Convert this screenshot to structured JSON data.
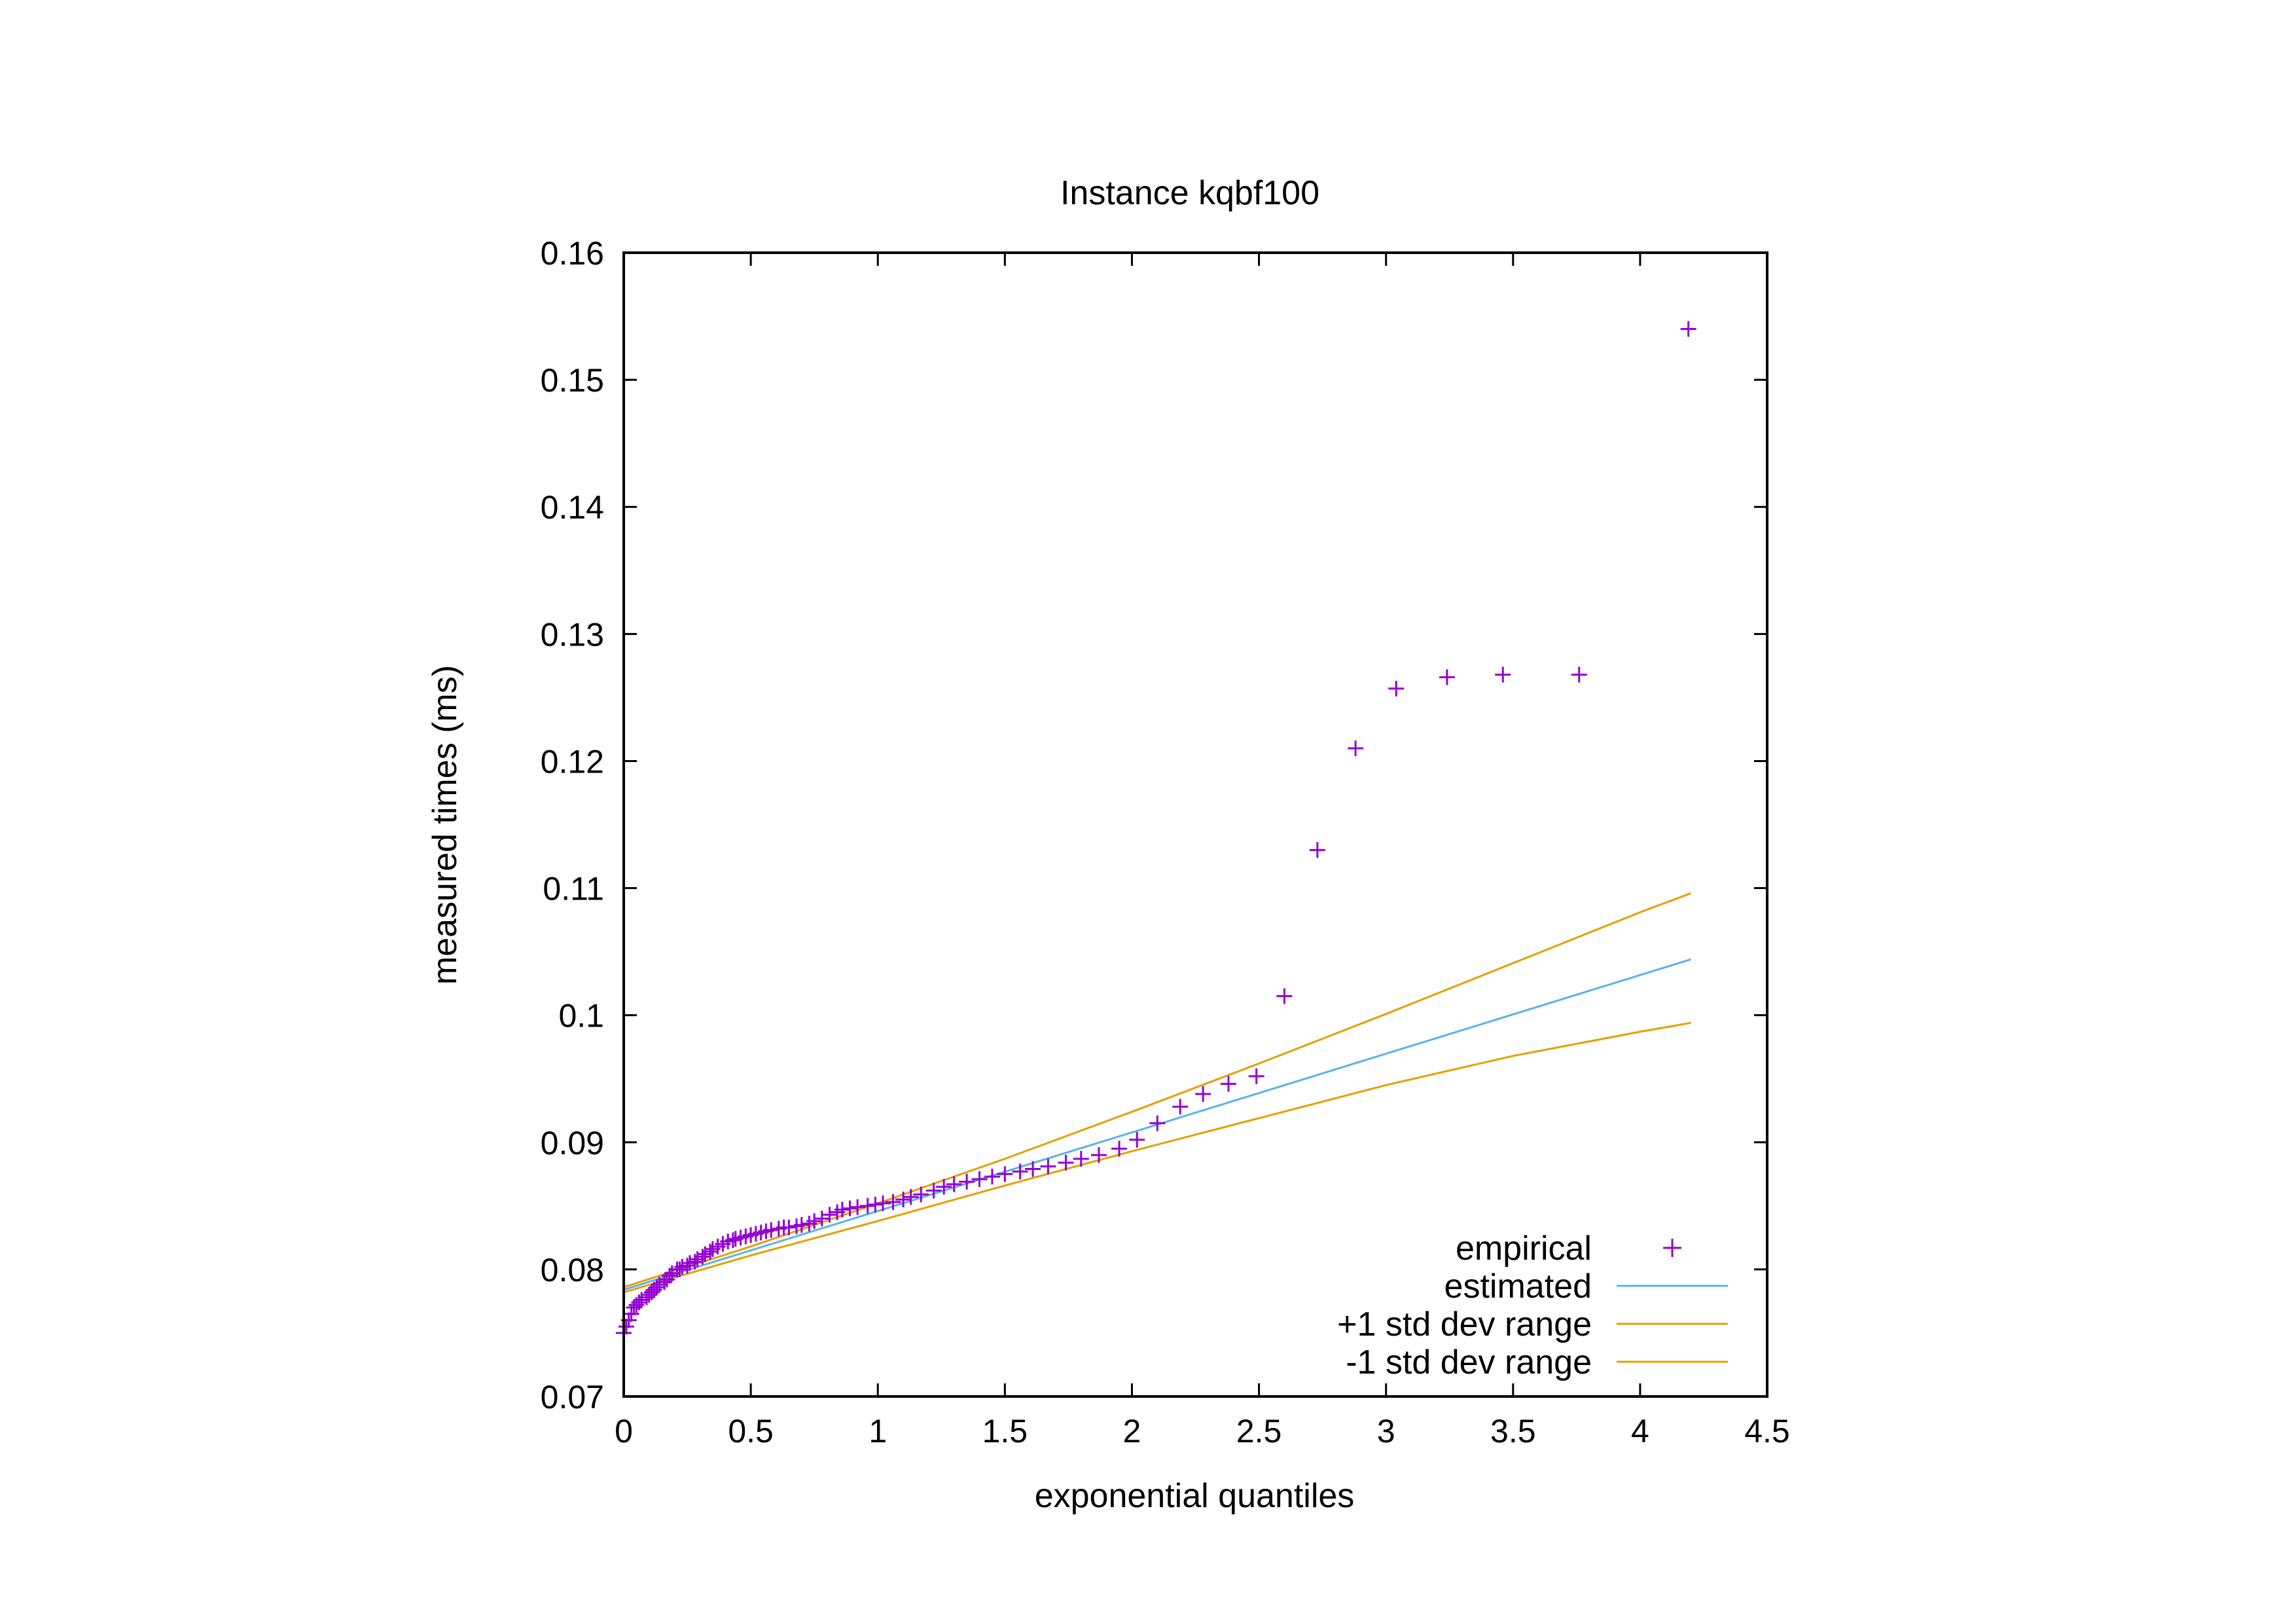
{
  "chart_data": {
    "type": "scatter",
    "title": "Instance kqbf100",
    "xlabel": "exponential quantiles",
    "ylabel": "measured times (ms)",
    "xlim": [
      0,
      4.5
    ],
    "ylim": [
      0.07,
      0.16
    ],
    "xticks": [
      "0",
      "0.5",
      "1",
      "1.5",
      "2",
      "2.5",
      "3",
      "3.5",
      "4",
      "4.5"
    ],
    "yticks": [
      "0.07",
      "0.08",
      "0.09",
      "0.1",
      "0.11",
      "0.12",
      "0.13",
      "0.14",
      "0.15",
      "0.16"
    ],
    "grid": false,
    "legend_position": "bottom-right",
    "series": [
      {
        "name": "empirical",
        "kind": "points",
        "marker": "plus",
        "color": "#9400D3",
        "x": [
          0.0,
          0.01,
          0.02,
          0.03,
          0.04,
          0.05,
          0.06,
          0.07,
          0.09,
          0.1,
          0.11,
          0.12,
          0.13,
          0.14,
          0.16,
          0.17,
          0.18,
          0.19,
          0.21,
          0.22,
          0.23,
          0.25,
          0.26,
          0.28,
          0.29,
          0.31,
          0.32,
          0.34,
          0.35,
          0.37,
          0.39,
          0.41,
          0.43,
          0.44,
          0.46,
          0.48,
          0.5,
          0.52,
          0.54,
          0.56,
          0.58,
          0.61,
          0.63,
          0.65,
          0.68,
          0.7,
          0.73,
          0.75,
          0.78,
          0.81,
          0.84,
          0.86,
          0.89,
          0.92,
          0.96,
          0.99,
          1.02,
          1.06,
          1.1,
          1.13,
          1.17,
          1.22,
          1.26,
          1.3,
          1.35,
          1.4,
          1.45,
          1.5,
          1.56,
          1.61,
          1.67,
          1.74,
          1.8,
          1.87,
          1.95,
          2.02,
          2.1,
          2.19,
          2.28,
          2.38,
          2.49,
          2.6,
          2.73,
          2.88,
          3.04,
          3.24,
          3.46,
          3.76,
          4.19
        ],
        "y": [
          0.075,
          0.0755,
          0.076,
          0.0765,
          0.077,
          0.0772,
          0.0774,
          0.0776,
          0.0778,
          0.078,
          0.0782,
          0.0784,
          0.0786,
          0.0788,
          0.079,
          0.0792,
          0.0795,
          0.0797,
          0.08,
          0.08,
          0.0802,
          0.0803,
          0.0805,
          0.0806,
          0.0808,
          0.081,
          0.0812,
          0.0814,
          0.0816,
          0.0818,
          0.082,
          0.0822,
          0.0823,
          0.0824,
          0.0825,
          0.0826,
          0.0827,
          0.0828,
          0.0829,
          0.083,
          0.0831,
          0.0832,
          0.0833,
          0.0833,
          0.0834,
          0.0835,
          0.0836,
          0.0838,
          0.084,
          0.0843,
          0.0845,
          0.0847,
          0.0848,
          0.0849,
          0.085,
          0.0851,
          0.0852,
          0.0853,
          0.0855,
          0.0857,
          0.0859,
          0.0862,
          0.0865,
          0.0867,
          0.0869,
          0.0871,
          0.0873,
          0.0875,
          0.0877,
          0.0879,
          0.0881,
          0.0884,
          0.0887,
          0.089,
          0.0895,
          0.0902,
          0.0915,
          0.0928,
          0.0938,
          0.0946,
          0.0952,
          0.1015,
          0.113,
          0.121,
          0.1257,
          0.1266,
          0.1268,
          0.1268,
          0.154
        ]
      },
      {
        "name": "estimated",
        "kind": "line",
        "color": "#56B4E9",
        "x": [
          0,
          4.2
        ],
        "y": [
          0.0784,
          0.1044
        ]
      },
      {
        "name": "+1 std dev range",
        "kind": "line",
        "color": "#E69F00",
        "x": [
          0,
          0.5,
          1,
          1.5,
          2,
          2.5,
          3,
          3.5,
          4,
          4.2
        ],
        "y": [
          0.0786,
          0.0818,
          0.0852,
          0.0887,
          0.0924,
          0.0962,
          0.1001,
          0.1041,
          0.1081,
          0.1096
        ]
      },
      {
        "name": "-1 std dev range",
        "kind": "line",
        "color": "#E69F00",
        "x": [
          0,
          0.5,
          1,
          1.5,
          2,
          2.5,
          3,
          3.5,
          4,
          4.2
        ],
        "y": [
          0.0782,
          0.0811,
          0.0838,
          0.0866,
          0.0893,
          0.0919,
          0.0945,
          0.0968,
          0.0987,
          0.0994
        ]
      }
    ]
  }
}
